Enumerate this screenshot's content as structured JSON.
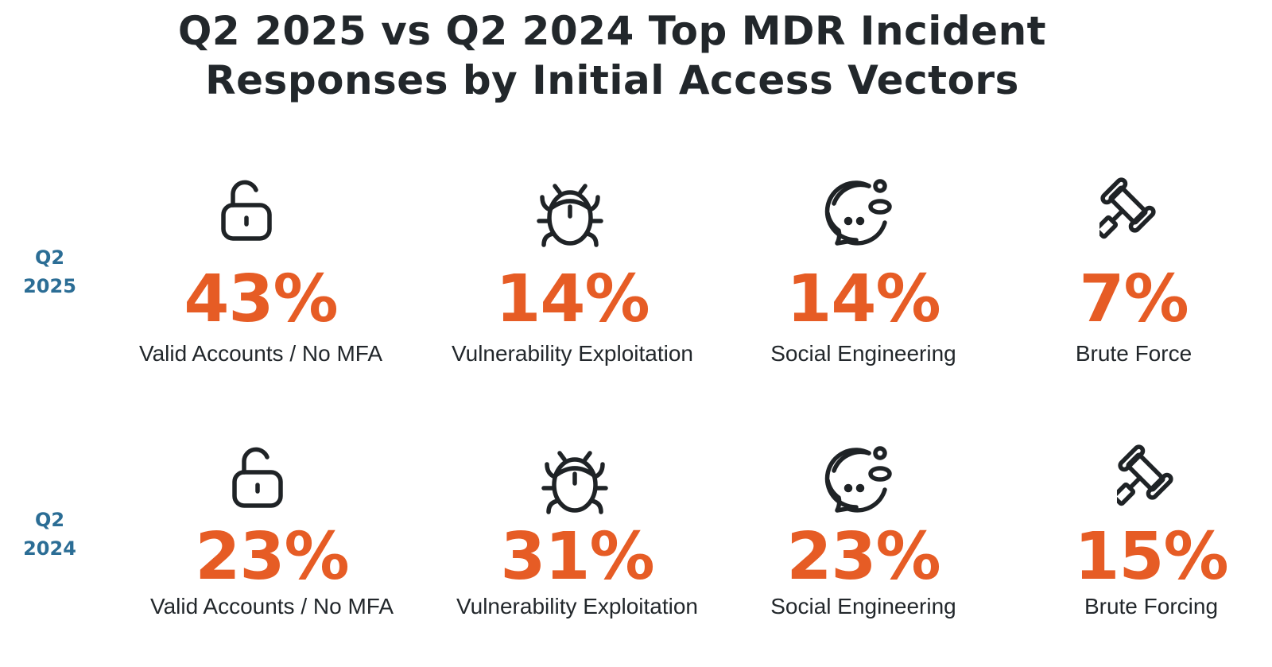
{
  "title_line1": "Q2 2025 vs Q2 2024 Top MDR Incident",
  "title_line2": "Responses by Initial Access Vectors",
  "colors": {
    "percent": "#e65c25",
    "row_label": "#2b6d95",
    "text": "#22272b",
    "icon": "#1f2326"
  },
  "rows": [
    {
      "label_line1": "Q2",
      "label_line2": "2025",
      "items": [
        {
          "icon": "unlocked-padlock-icon",
          "value": "43%",
          "label": "Valid Accounts / No MFA"
        },
        {
          "icon": "bug-icon",
          "value": "14%",
          "label": "Vulnerability Exploitation"
        },
        {
          "icon": "chat-person-icon",
          "value": "14%",
          "label": "Social Engineering"
        },
        {
          "icon": "gavel-icon",
          "value": "7%",
          "label": "Brute Force"
        }
      ]
    },
    {
      "label_line1": "Q2",
      "label_line2": "2024",
      "items": [
        {
          "icon": "unlocked-padlock-icon",
          "value": "23%",
          "label": "Valid Accounts / No MFA"
        },
        {
          "icon": "bug-icon",
          "value": "31%",
          "label": "Vulnerability Exploitation"
        },
        {
          "icon": "chat-person-icon",
          "value": "23%",
          "label": "Social Engineering"
        },
        {
          "icon": "gavel-icon",
          "value": "15%",
          "label": "Brute Forcing"
        }
      ]
    }
  ],
  "chart_data": {
    "type": "table",
    "title": "Q2 2025 vs Q2 2024 Top MDR Incident Responses by Initial Access Vectors",
    "categories": [
      "Valid Accounts / No MFA",
      "Vulnerability Exploitation",
      "Social Engineering",
      "Brute Force"
    ],
    "series": [
      {
        "name": "Q2 2025",
        "values": [
          43,
          14,
          14,
          7
        ],
        "labels": [
          "Valid Accounts / No MFA",
          "Vulnerability Exploitation",
          "Social Engineering",
          "Brute Force"
        ]
      },
      {
        "name": "Q2 2024",
        "values": [
          23,
          31,
          23,
          15
        ],
        "labels": [
          "Valid Accounts / No MFA",
          "Vulnerability Exploitation",
          "Social Engineering",
          "Brute Forcing"
        ]
      }
    ],
    "units": "%"
  }
}
